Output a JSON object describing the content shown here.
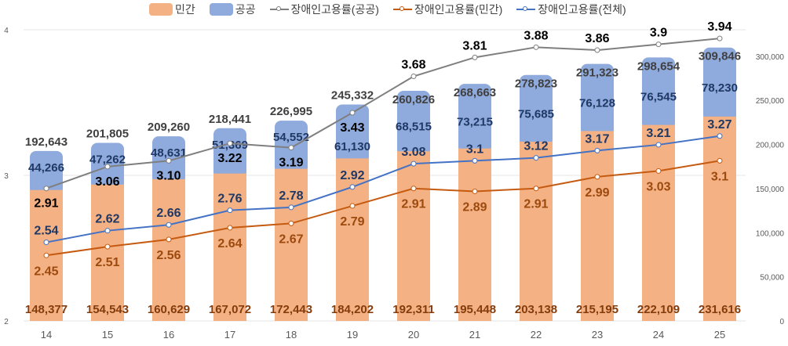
{
  "chart_data": {
    "type": "bar",
    "stacked": true,
    "categories": [
      "14",
      "15",
      "16",
      "17",
      "18",
      "19",
      "20",
      "21",
      "22",
      "23",
      "24",
      "25"
    ],
    "series": [
      {
        "name": "민간",
        "kind": "bar",
        "axis": "right",
        "color": "#F4B183",
        "values": [
          148377,
          154543,
          160629,
          167072,
          172443,
          184202,
          192311,
          195448,
          203138,
          215195,
          222109,
          231616
        ]
      },
      {
        "name": "공공",
        "kind": "bar",
        "axis": "right",
        "color": "#8FAADC",
        "values": [
          44266,
          47262,
          48631,
          51369,
          54552,
          61130,
          68515,
          73215,
          75685,
          76128,
          76545,
          78230
        ]
      },
      {
        "name": "장애인고용률(공공)",
        "kind": "line",
        "axis": "left",
        "color": "#7F7F7F",
        "values": [
          2.91,
          3.06,
          3.1,
          3.22,
          3.19,
          3.43,
          3.68,
          3.81,
          3.88,
          3.86,
          3.9,
          3.94
        ],
        "labels": [
          "2.91",
          "3.06",
          "3.10",
          "3.22",
          "3.19",
          "3.43",
          "3.68",
          "3.81",
          "3.88",
          "3.86",
          "3.9",
          "3.94"
        ]
      },
      {
        "name": "장애인고용률(민간)",
        "kind": "line",
        "axis": "left",
        "color": "#C55A11",
        "values": [
          2.45,
          2.51,
          2.56,
          2.64,
          2.67,
          2.79,
          2.91,
          2.89,
          2.91,
          2.99,
          3.03,
          3.1
        ],
        "labels": [
          "2.45",
          "2.51",
          "2.56",
          "2.64",
          "2.67",
          "2.79",
          "2.91",
          "2.89",
          "2.91",
          "2.99",
          "3.03",
          "3.1"
        ]
      },
      {
        "name": "장애인고용률(전체)",
        "kind": "line",
        "axis": "left",
        "color": "#4472C4",
        "values": [
          2.54,
          2.62,
          2.66,
          2.76,
          2.78,
          2.92,
          3.08,
          3.1,
          3.12,
          3.17,
          3.21,
          3.27
        ],
        "labels": [
          "2.54",
          "2.62",
          "2.66",
          "2.76",
          "2.78",
          "2.92",
          "3.08",
          "3.1",
          "3.12",
          "3.17",
          "3.21",
          "3.27"
        ]
      }
    ],
    "totals": [
      "192,643",
      "201,805",
      "209,260",
      "218,441",
      "226,995",
      "245,332",
      "260,826",
      "268,663",
      "278,823",
      "291,323",
      "298,654",
      "309,846"
    ],
    "private_labels": [
      "148,377",
      "154,543",
      "160,629",
      "167,072",
      "172,443",
      "184,202",
      "192,311",
      "195,448",
      "203,138",
      "215,195",
      "222,109",
      "231,616"
    ],
    "public_labels": [
      "44,266",
      "47,262",
      "48,631",
      "51,369",
      "54,552",
      "61,130",
      "68,515",
      "73,215",
      "75,685",
      "76,128",
      "76,545",
      "78,230"
    ],
    "ylim_left": [
      2,
      4
    ],
    "left_ticks": [
      "2",
      "3",
      "4"
    ],
    "ylim_right": [
      0,
      330000
    ],
    "right_ticks": [
      "0",
      "50,000",
      "100,000",
      "150,000",
      "200,000",
      "250,000",
      "300,000"
    ],
    "grid": true,
    "legend": "top"
  }
}
